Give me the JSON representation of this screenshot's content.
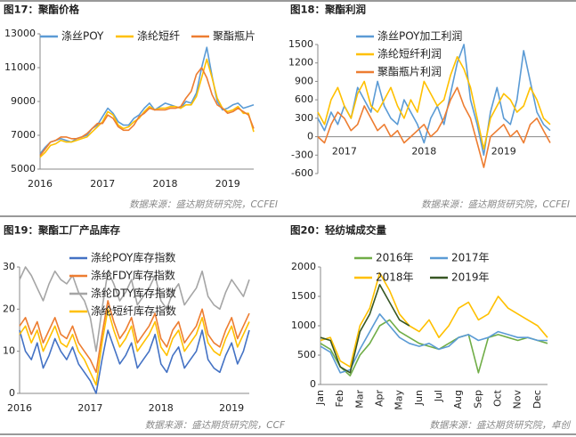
{
  "chart_data": [
    {
      "type": "line",
      "title": "图17：聚酯价格",
      "source": "数据来源：盛达期货研究院，CCFEI",
      "categories": [
        "2016",
        null,
        null,
        null,
        null,
        null,
        null,
        null,
        null,
        null,
        null,
        null,
        "2017",
        null,
        null,
        null,
        null,
        null,
        null,
        null,
        null,
        null,
        null,
        null,
        "2018",
        null,
        null,
        null,
        null,
        null,
        null,
        null,
        null,
        null,
        null,
        null,
        "2019",
        null,
        null,
        null,
        null,
        null
      ],
      "ylim": [
        5000,
        13000
      ],
      "yticks": [
        5000,
        7000,
        9000,
        11000,
        13000
      ],
      "series": [
        {
          "name": "涤丝POY",
          "color": "#5b9bd5",
          "values": [
            5900,
            6300,
            6600,
            6700,
            6800,
            6700,
            6600,
            6800,
            6900,
            7000,
            7400,
            7600,
            8100,
            8600,
            8300,
            7800,
            7600,
            7600,
            8000,
            8200,
            8600,
            8900,
            8500,
            8700,
            8900,
            8800,
            8700,
            8600,
            9000,
            8900,
            9500,
            11000,
            12200,
            10500,
            9000,
            8500,
            8600,
            8800,
            8900,
            8600,
            8700,
            8800
          ]
        },
        {
          "name": "涤纶短纤",
          "color": "#ffc000",
          "values": [
            5700,
            6000,
            6400,
            6500,
            6700,
            6600,
            6600,
            6700,
            6800,
            6900,
            7200,
            7500,
            7800,
            8400,
            8200,
            7600,
            7400,
            7500,
            7800,
            8000,
            8400,
            8700,
            8500,
            8600,
            8600,
            8700,
            8700,
            8600,
            8800,
            8800,
            9300,
            10400,
            11500,
            10400,
            9200,
            8600,
            8400,
            8500,
            8700,
            8300,
            8300,
            7200
          ]
        },
        {
          "name": "聚酯瓶片",
          "color": "#ed7d31",
          "values": [
            5800,
            6200,
            6600,
            6700,
            6900,
            6900,
            6800,
            6800,
            6900,
            7100,
            7400,
            7700,
            7700,
            8200,
            8000,
            7500,
            7300,
            7300,
            7600,
            8100,
            8300,
            8600,
            8500,
            8500,
            8500,
            8600,
            8600,
            8700,
            9200,
            9600,
            10600,
            11000,
            10400,
            9400,
            8800,
            8600,
            8300,
            8400,
            8600,
            8400,
            8200,
            7400
          ]
        }
      ]
    },
    {
      "type": "line",
      "title": "图18：聚酯利润",
      "source": "数据来源：盛达期货研究院，CCFEI",
      "categories": [
        null,
        null,
        null,
        null,
        "2017",
        null,
        null,
        null,
        null,
        null,
        null,
        null,
        null,
        null,
        null,
        null,
        "2018",
        null,
        null,
        null,
        null,
        null,
        null,
        null,
        null,
        null,
        null,
        null,
        "2019",
        null,
        null,
        null,
        null,
        null,
        null,
        null
      ],
      "ylim": [
        -600,
        1500
      ],
      "yticks": [
        -600,
        -300,
        0,
        300,
        600,
        900,
        1200,
        1500
      ],
      "series": [
        {
          "name": "涤丝POY加工利润",
          "color": "#5b9bd5",
          "values": [
            300,
            100,
            400,
            200,
            500,
            300,
            800,
            600,
            400,
            900,
            500,
            300,
            200,
            600,
            400,
            200,
            -100,
            300,
            500,
            200,
            700,
            1200,
            1500,
            600,
            200,
            -300,
            400,
            800,
            300,
            200,
            600,
            1400,
            900,
            400,
            200,
            100
          ]
        },
        {
          "name": "涤纶短纤利润",
          "color": "#ffc000",
          "values": [
            400,
            200,
            600,
            800,
            500,
            300,
            700,
            900,
            500,
            400,
            600,
            800,
            500,
            300,
            600,
            400,
            900,
            700,
            500,
            600,
            1000,
            1300,
            1100,
            800,
            300,
            -200,
            300,
            500,
            700,
            600,
            400,
            500,
            800,
            600,
            300,
            200
          ]
        },
        {
          "name": "聚酯瓶片利润",
          "color": "#ed7d31",
          "values": [
            0,
            -100,
            200,
            400,
            300,
            100,
            200,
            500,
            300,
            100,
            200,
            0,
            100,
            -100,
            0,
            100,
            200,
            0,
            100,
            300,
            600,
            800,
            500,
            300,
            -100,
            -500,
            0,
            100,
            200,
            0,
            100,
            -100,
            200,
            300,
            100,
            -100
          ]
        }
      ]
    },
    {
      "type": "line",
      "title": "图19：聚酯工厂产品库存",
      "source": "数据来源：盛达期货研究院，CCF",
      "categories": [
        "2016",
        null,
        null,
        null,
        null,
        null,
        null,
        null,
        null,
        null,
        null,
        null,
        "2017",
        null,
        null,
        null,
        null,
        null,
        null,
        null,
        null,
        null,
        null,
        null,
        "2018",
        null,
        null,
        null,
        null,
        null,
        null,
        null,
        null,
        null,
        null,
        null,
        "2019",
        null,
        null,
        null
      ],
      "ylim": [
        0,
        30
      ],
      "yticks": [
        0,
        10,
        20,
        30
      ],
      "series": [
        {
          "name": "涤纶POY库存指数",
          "color": "#4472c4",
          "values": [
            15,
            10,
            8,
            12,
            6,
            9,
            13,
            10,
            8,
            11,
            7,
            5,
            3,
            0,
            8,
            15,
            11,
            7,
            9,
            12,
            6,
            8,
            10,
            14,
            7,
            5,
            9,
            11,
            6,
            8,
            10,
            15,
            8,
            6,
            5,
            9,
            12,
            7,
            10,
            15
          ]
        },
        {
          "name": "涤纶FDY库存指数",
          "color": "#ed7d31",
          "values": [
            16,
            18,
            14,
            17,
            12,
            15,
            18,
            14,
            13,
            16,
            12,
            10,
            8,
            5,
            14,
            22,
            17,
            13,
            15,
            18,
            12,
            14,
            16,
            19,
            13,
            11,
            15,
            17,
            12,
            14,
            16,
            20,
            14,
            12,
            11,
            15,
            18,
            13,
            16,
            19
          ]
        },
        {
          "name": "涤纶DTY库存指数",
          "color": "#a5a5a5",
          "values": [
            27,
            30,
            28,
            25,
            22,
            26,
            29,
            27,
            26,
            28,
            24,
            22,
            18,
            10,
            20,
            29,
            26,
            22,
            24,
            27,
            21,
            23,
            25,
            28,
            22,
            20,
            24,
            26,
            21,
            23,
            25,
            29,
            23,
            21,
            20,
            24,
            27,
            25,
            23,
            27
          ]
        },
        {
          "name": "涤纶短纤库存指数",
          "color": "#ffc000",
          "values": [
            14,
            16,
            12,
            15,
            10,
            13,
            16,
            12,
            11,
            14,
            10,
            8,
            5,
            2,
            12,
            20,
            15,
            11,
            13,
            16,
            10,
            12,
            14,
            17,
            11,
            9,
            13,
            15,
            10,
            12,
            14,
            18,
            12,
            10,
            9,
            13,
            16,
            11,
            14,
            17
          ]
        }
      ]
    },
    {
      "type": "line",
      "title": "图20：轻纺城成交量",
      "source": "数据来源：盛达期货研究院，卓创",
      "rotate_xticks": true,
      "categories": [
        "Jan",
        null,
        "Feb",
        null,
        "Mar",
        null,
        "Apr",
        null,
        "May",
        null,
        "Jun",
        null,
        "Jul",
        null,
        "Aug",
        null,
        "Sep",
        null,
        "Oct",
        null,
        "Nov",
        null,
        "Dec",
        null
      ],
      "ylim": [
        0,
        2000
      ],
      "yticks": [
        0,
        500,
        1000,
        1500,
        2000
      ],
      "series": [
        {
          "name": "2016年",
          "color": "#70ad47",
          "values": [
            700,
            600,
            300,
            150,
            500,
            700,
            1000,
            1100,
            900,
            800,
            700,
            650,
            600,
            700,
            800,
            850,
            200,
            800,
            850,
            800,
            750,
            800,
            750,
            700
          ]
        },
        {
          "name": "2017年",
          "color": "#5b9bd5",
          "values": [
            650,
            550,
            200,
            250,
            600,
            900,
            1200,
            1000,
            800,
            700,
            650,
            700,
            600,
            650,
            800,
            850,
            750,
            800,
            900,
            850,
            800,
            800,
            750,
            750
          ]
        },
        {
          "name": "2018年",
          "color": "#ffc000",
          "values": [
            750,
            800,
            400,
            300,
            1000,
            1300,
            1900,
            1600,
            1200,
            1000,
            900,
            1100,
            800,
            1000,
            1300,
            1400,
            1100,
            1200,
            1500,
            1300,
            1200,
            1100,
            1000,
            800
          ]
        },
        {
          "name": "2019年",
          "color": "#375623",
          "values": [
            800,
            750,
            300,
            200,
            900,
            1200,
            1700,
            1400,
            1100,
            1000,
            null,
            null,
            null,
            null,
            null,
            null,
            null,
            null,
            null,
            null,
            null,
            null,
            null,
            null
          ]
        }
      ]
    }
  ]
}
